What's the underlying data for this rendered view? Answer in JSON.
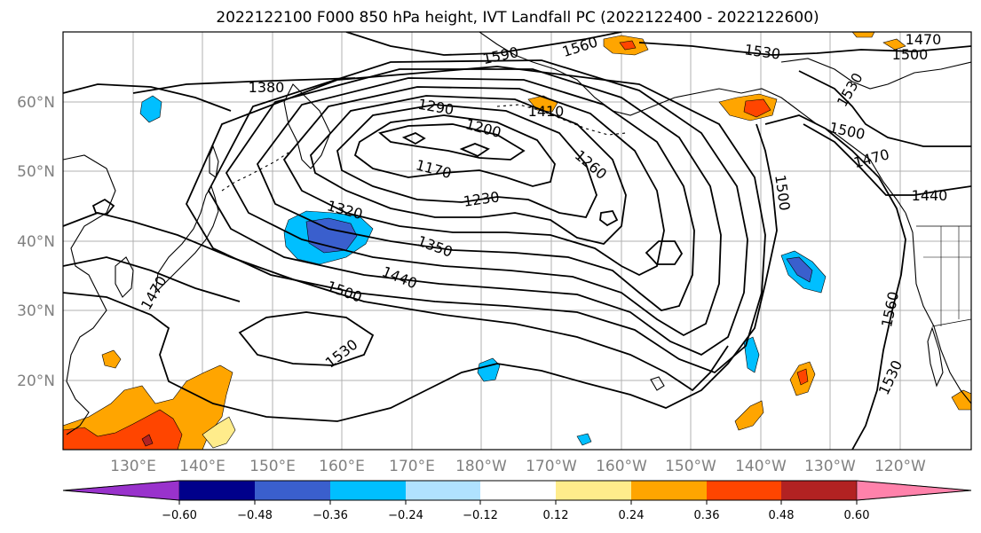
{
  "title": "2022122100 F000 850 hPa height, IVT Landfall PC (2022122400 - 2022122600)",
  "lat_labels": [
    "60°N",
    "50°N",
    "40°N",
    "30°N",
    "20°N"
  ],
  "lon_labels": [
    "130°E",
    "140°E",
    "150°E",
    "160°E",
    "170°E",
    "180°W",
    "170°W",
    "160°W",
    "150°W",
    "140°W",
    "130°W",
    "120°W"
  ],
  "contour_labels": [
    "1590",
    "1560",
    "1530",
    "1470",
    "1500",
    "1380",
    "1290",
    "1410",
    "1200",
    "1530",
    "1500",
    "1470",
    "1440",
    "1170",
    "1260",
    "1500",
    "1230",
    "1320",
    "1350",
    "1440",
    "1500",
    "1470",
    "1560",
    "1530",
    "1530"
  ],
  "colorbar": {
    "ticks": [
      "−0.60",
      "−0.48",
      "−0.36",
      "−0.24",
      "−0.12",
      "0.12",
      "0.24",
      "0.36",
      "0.48",
      "0.60"
    ],
    "colors": [
      "#9932cc",
      "#00008b",
      "#3a5fcd",
      "#00bfff",
      "#b0e2ff",
      "#ffffff",
      "#ffec8b",
      "#ffa500",
      "#ff4500",
      "#b22222",
      "#ff82ab"
    ]
  }
}
